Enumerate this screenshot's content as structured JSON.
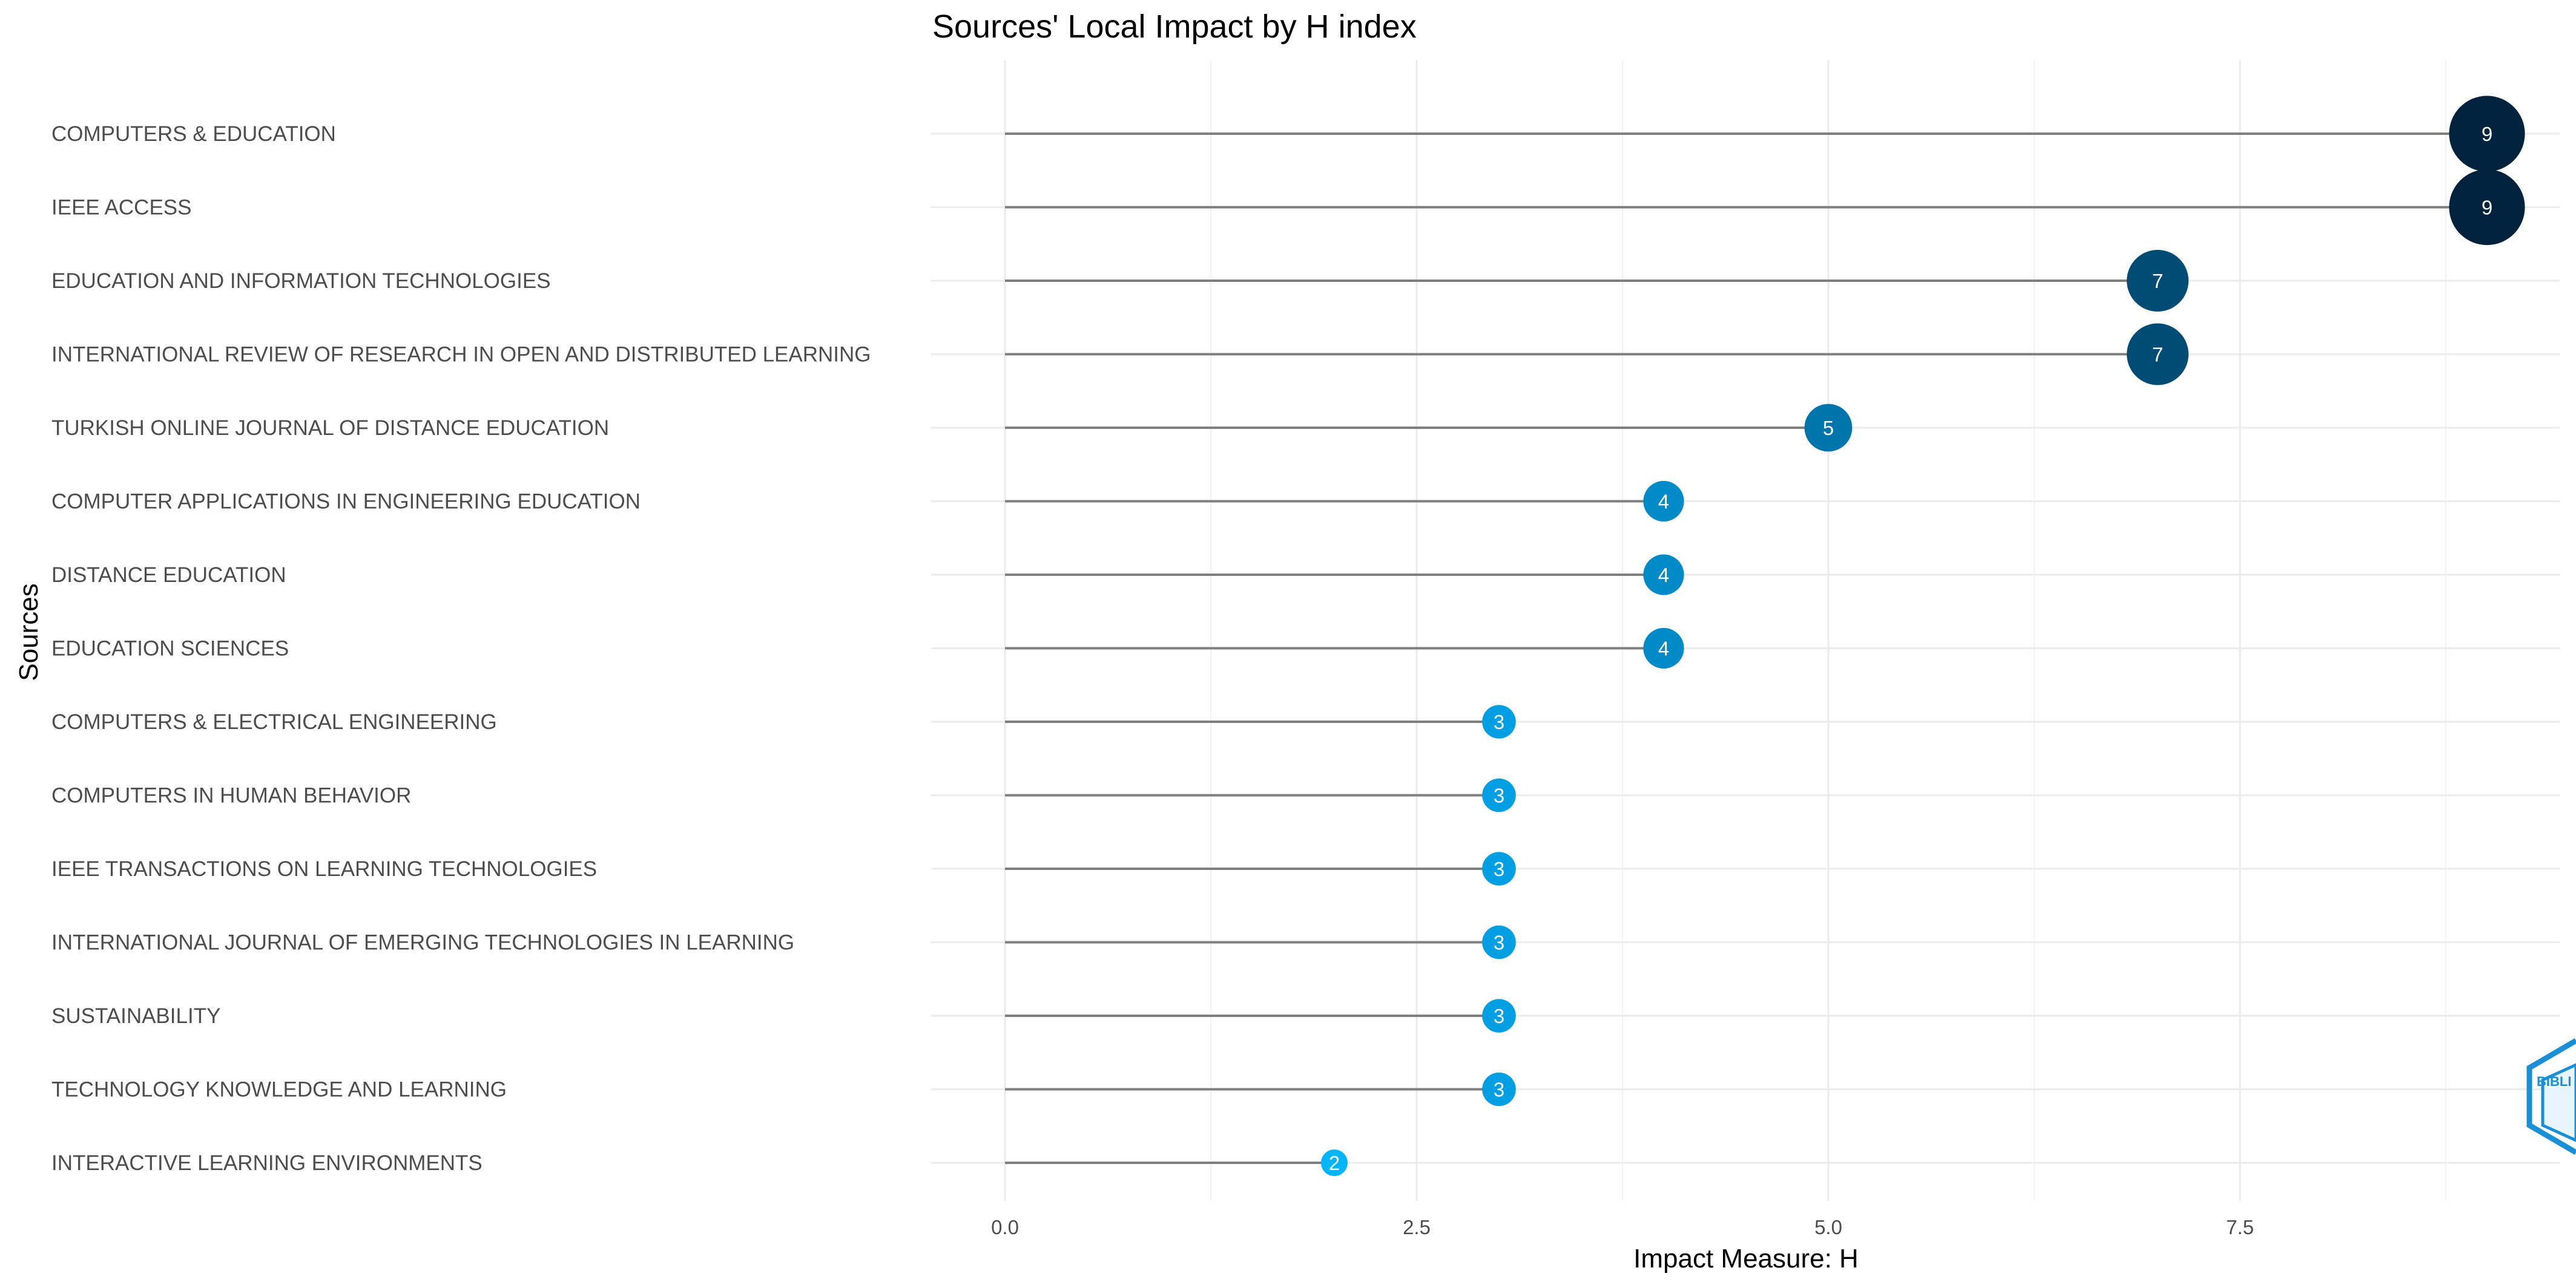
{
  "chart_data": {
    "type": "lollipop",
    "title": "Sources' Local Impact by H index",
    "xlabel": "Impact Measure: H",
    "ylabel": "Sources",
    "xlim": [
      -0.3,
      9.3
    ],
    "x_ticks": [
      0,
      2.5,
      5,
      7.5
    ],
    "x_tick_labels": [
      "0.0",
      "2.5",
      "5.0",
      "7.5"
    ],
    "grid": true,
    "color_scale": {
      "low": "#00b4ff",
      "high": "#00223d",
      "min": 2,
      "max": 9
    },
    "categories": [
      "COMPUTERS & EDUCATION",
      "IEEE ACCESS",
      "EDUCATION AND INFORMATION TECHNOLOGIES",
      "INTERNATIONAL REVIEW OF RESEARCH IN OPEN AND DISTRIBUTED LEARNING",
      "TURKISH ONLINE JOURNAL OF DISTANCE EDUCATION",
      "COMPUTER APPLICATIONS IN ENGINEERING EDUCATION",
      "DISTANCE EDUCATION",
      "EDUCATION SCIENCES",
      "COMPUTERS & ELECTRICAL ENGINEERING",
      "COMPUTERS IN HUMAN BEHAVIOR",
      "IEEE TRANSACTIONS ON LEARNING TECHNOLOGIES",
      "INTERNATIONAL JOURNAL OF EMERGING TECHNOLOGIES IN LEARNING",
      "SUSTAINABILITY",
      "TECHNOLOGY KNOWLEDGE AND LEARNING",
      "INTERACTIVE LEARNING ENVIRONMENTS"
    ],
    "values": [
      9,
      9,
      7,
      7,
      5,
      4,
      4,
      4,
      3,
      3,
      3,
      3,
      3,
      3,
      2
    ]
  },
  "watermark": {
    "text": "BIBLI",
    "color": "#1a8fd6"
  }
}
